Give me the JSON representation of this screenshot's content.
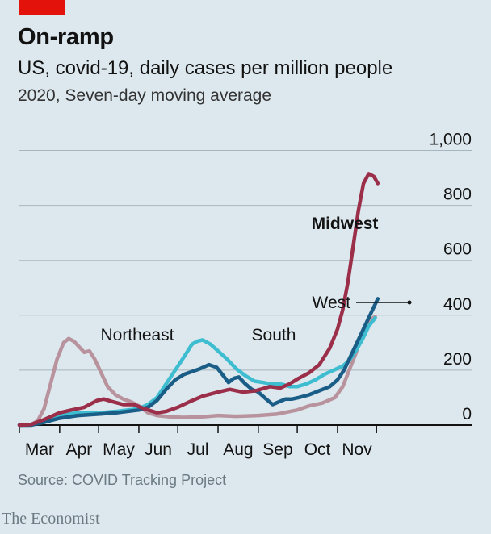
{
  "header": {
    "title": "On-ramp",
    "subtitle": "US, covid-19, daily cases per million people",
    "subsubtitle": "2020, Seven-day moving average"
  },
  "footer": {
    "source": "Source: COVID Tracking Project",
    "brand": "The Economist"
  },
  "colors": {
    "background": "#dde8ee",
    "accent": "#e3120b",
    "midwest": "#9b2f4a",
    "west": "#1a5d87",
    "south": "#3ebdd0",
    "northeast": "#b8939d"
  },
  "chart_data": {
    "type": "line",
    "title": "On-ramp",
    "ylabel": "daily cases per million people",
    "ylim": [
      0,
      1000
    ],
    "yticks": [
      0,
      200,
      400,
      600,
      800,
      1000
    ],
    "ytick_labels": [
      "0",
      "200",
      "400",
      "600",
      "800",
      "1,000"
    ],
    "xlim": [
      "Mar 1",
      "Dec 15"
    ],
    "xtick_labels": [
      "Mar",
      "Apr",
      "May",
      "Jun",
      "Jul",
      "Aug",
      "Sep",
      "Oct",
      "Nov"
    ],
    "grid": "horizontal",
    "legend": "direct labels",
    "series": [
      {
        "name": "Northeast",
        "color": "#b8939d",
        "points": [
          [
            "Mar 1",
            0
          ],
          [
            "Mar 10",
            2
          ],
          [
            "Mar 15",
            15
          ],
          [
            "Mar 20",
            60
          ],
          [
            "Mar 25",
            150
          ],
          [
            "Mar 30",
            240
          ],
          [
            "Apr 4",
            300
          ],
          [
            "Apr 8",
            315
          ],
          [
            "Apr 12",
            305
          ],
          [
            "Apr 16",
            285
          ],
          [
            "Apr 20",
            265
          ],
          [
            "Apr 24",
            270
          ],
          [
            "Apr 28",
            240
          ],
          [
            "May 3",
            190
          ],
          [
            "May 8",
            140
          ],
          [
            "May 14",
            110
          ],
          [
            "May 20",
            95
          ],
          [
            "May 26",
            85
          ],
          [
            "Jun 1",
            70
          ],
          [
            "Jun 8",
            45
          ],
          [
            "Jun 15",
            35
          ],
          [
            "Jun 25",
            30
          ],
          [
            "Jul 5",
            28
          ],
          [
            "Jul 20",
            30
          ],
          [
            "Aug 1",
            35
          ],
          [
            "Aug 15",
            32
          ],
          [
            "Sep 1",
            35
          ],
          [
            "Sep 15",
            40
          ],
          [
            "Oct 1",
            55
          ],
          [
            "Oct 10",
            70
          ],
          [
            "Oct 20",
            80
          ],
          [
            "Oct 30",
            100
          ],
          [
            "Nov 5",
            140
          ],
          [
            "Nov 10",
            200
          ],
          [
            "Nov 15",
            260
          ],
          [
            "Nov 20",
            330
          ],
          [
            "Nov 25",
            380
          ],
          [
            "Nov 30",
            395
          ]
        ]
      },
      {
        "name": "South",
        "color": "#3ebdd0",
        "points": [
          [
            "Mar 1",
            0
          ],
          [
            "Mar 10",
            1
          ],
          [
            "Mar 20",
            10
          ],
          [
            "Apr 1",
            35
          ],
          [
            "Apr 15",
            45
          ],
          [
            "May 1",
            45
          ],
          [
            "May 15",
            50
          ],
          [
            "Jun 1",
            60
          ],
          [
            "Jun 8",
            75
          ],
          [
            "Jun 15",
            100
          ],
          [
            "Jun 22",
            150
          ],
          [
            "Jun 29",
            200
          ],
          [
            "Jul 6",
            250
          ],
          [
            "Jul 12",
            295
          ],
          [
            "Jul 16",
            305
          ],
          [
            "Jul 20",
            310
          ],
          [
            "Jul 26",
            295
          ],
          [
            "Aug 1",
            270
          ],
          [
            "Aug 8",
            240
          ],
          [
            "Aug 15",
            205
          ],
          [
            "Aug 22",
            180
          ],
          [
            "Aug 29",
            160
          ],
          [
            "Sep 5",
            155
          ],
          [
            "Sep 10",
            150
          ],
          [
            "Sep 15",
            150
          ],
          [
            "Sep 20",
            148
          ],
          [
            "Sep 25",
            140
          ],
          [
            "Oct 1",
            140
          ],
          [
            "Oct 8",
            150
          ],
          [
            "Oct 15",
            165
          ],
          [
            "Oct 22",
            185
          ],
          [
            "Oct 29",
            200
          ],
          [
            "Nov 5",
            215
          ],
          [
            "Nov 10",
            235
          ],
          [
            "Nov 15",
            270
          ],
          [
            "Nov 20",
            310
          ],
          [
            "Nov 25",
            360
          ],
          [
            "Nov 30",
            390
          ]
        ]
      },
      {
        "name": "West",
        "color": "#1a5d87",
        "points": [
          [
            "Mar 1",
            0
          ],
          [
            "Mar 10",
            0
          ],
          [
            "Mar 20",
            10
          ],
          [
            "Apr 1",
            25
          ],
          [
            "Apr 15",
            35
          ],
          [
            "May 1",
            40
          ],
          [
            "May 15",
            45
          ],
          [
            "Jun 1",
            55
          ],
          [
            "Jun 8",
            65
          ],
          [
            "Jun 15",
            90
          ],
          [
            "Jun 22",
            130
          ],
          [
            "Jun 29",
            165
          ],
          [
            "Jul 6",
            185
          ],
          [
            "Jul 12",
            195
          ],
          [
            "Jul 18",
            205
          ],
          [
            "Jul 25",
            220
          ],
          [
            "Jul 31",
            210
          ],
          [
            "Aug 5",
            180
          ],
          [
            "Aug 9",
            155
          ],
          [
            "Aug 13",
            170
          ],
          [
            "Aug 17",
            175
          ],
          [
            "Aug 22",
            150
          ],
          [
            "Aug 27",
            130
          ],
          [
            "Sep 1",
            120
          ],
          [
            "Sep 7",
            95
          ],
          [
            "Sep 12",
            75
          ],
          [
            "Sep 17",
            85
          ],
          [
            "Sep 22",
            95
          ],
          [
            "Sep 27",
            95
          ],
          [
            "Oct 2",
            100
          ],
          [
            "Oct 10",
            110
          ],
          [
            "Oct 18",
            125
          ],
          [
            "Oct 26",
            140
          ],
          [
            "Nov 1",
            165
          ],
          [
            "Nov 6",
            200
          ],
          [
            "Nov 12",
            260
          ],
          [
            "Nov 18",
            320
          ],
          [
            "Nov 24",
            380
          ],
          [
            "Nov 30",
            440
          ],
          [
            "Dec 2",
            460
          ]
        ]
      },
      {
        "name": "Midwest",
        "color": "#9b2f4a",
        "points": [
          [
            "Mar 1",
            0
          ],
          [
            "Mar 10",
            2
          ],
          [
            "Mar 20",
            20
          ],
          [
            "Apr 1",
            45
          ],
          [
            "Apr 10",
            55
          ],
          [
            "Apr 20",
            65
          ],
          [
            "Apr 30",
            90
          ],
          [
            "May 5",
            95
          ],
          [
            "May 12",
            85
          ],
          [
            "May 20",
            75
          ],
          [
            "May 28",
            75
          ],
          [
            "Jun 5",
            60
          ],
          [
            "Jun 15",
            45
          ],
          [
            "Jun 22",
            50
          ],
          [
            "Jul 1",
            65
          ],
          [
            "Jul 10",
            85
          ],
          [
            "Jul 20",
            105
          ],
          [
            "Aug 1",
            120
          ],
          [
            "Aug 10",
            130
          ],
          [
            "Aug 20",
            120
          ],
          [
            "Aug 30",
            125
          ],
          [
            "Sep 10",
            140
          ],
          [
            "Sep 18",
            135
          ],
          [
            "Sep 25",
            150
          ],
          [
            "Oct 2",
            170
          ],
          [
            "Oct 10",
            190
          ],
          [
            "Oct 18",
            220
          ],
          [
            "Oct 26",
            280
          ],
          [
            "Nov 1",
            350
          ],
          [
            "Nov 5",
            420
          ],
          [
            "Nov 9",
            520
          ],
          [
            "Nov 13",
            650
          ],
          [
            "Nov 17",
            780
          ],
          [
            "Nov 21",
            880
          ],
          [
            "Nov 25",
            915
          ],
          [
            "Nov 29",
            905
          ],
          [
            "Dec 2",
            880
          ]
        ]
      }
    ],
    "annotations": [
      {
        "text": "Northeast",
        "series": "Northeast",
        "weight": "normal"
      },
      {
        "text": "South",
        "series": "South",
        "weight": "normal"
      },
      {
        "text": "Midwest",
        "series": "Midwest",
        "weight": "bold"
      },
      {
        "text": "West",
        "series": "West",
        "weight": "normal",
        "leader": true
      }
    ]
  }
}
